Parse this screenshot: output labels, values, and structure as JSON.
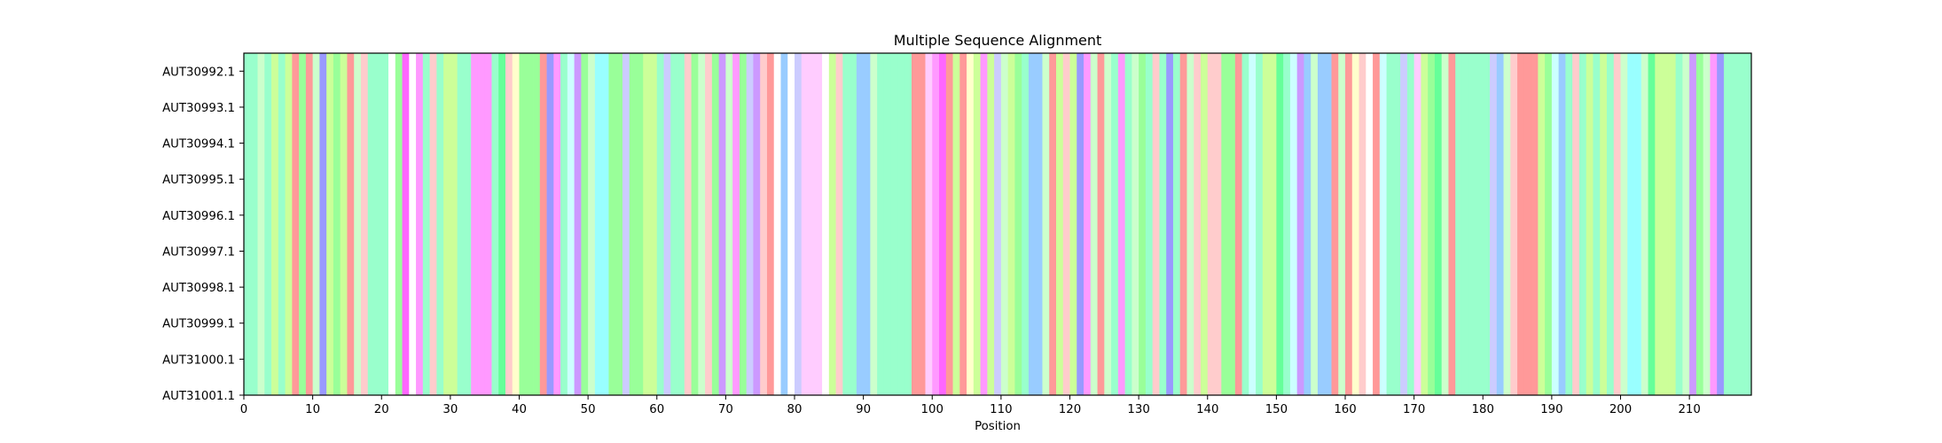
{
  "chart_data": {
    "type": "heatmap",
    "title": "Multiple Sequence Alignment",
    "xlabel": "Position",
    "ylabel": "",
    "xlim": [
      0,
      219
    ],
    "xticks": [
      0,
      10,
      20,
      30,
      40,
      50,
      60,
      70,
      80,
      90,
      100,
      110,
      120,
      130,
      140,
      150,
      160,
      170,
      180,
      190,
      200,
      210
    ],
    "sequences": [
      "AUT30992.1",
      "AUT30993.1",
      "AUT30994.1",
      "AUT30995.1",
      "AUT30996.1",
      "AUT30997.1",
      "AUT30998.1",
      "AUT30999.1",
      "AUT31000.1",
      "AUT31001.1"
    ],
    "column_colors": [
      "#99ffcc",
      "#99ffcc",
      "#ccffcc",
      "#99ffcc",
      "#ccff99",
      "#99ffcc",
      "#ccff99",
      "#ff9999",
      "#99ff99",
      "#ff9999",
      "#ccffcc",
      "#9999ff",
      "#ccff99",
      "#99ff99",
      "#ccff99",
      "#ff9999",
      "#ccffcc",
      "#ffcccc",
      "#99ffcc",
      "#99ffcc",
      "#99ffcc",
      "#ffffff",
      "#99ff99",
      "#ff66ff",
      "#ffffff",
      "#ff99ff",
      "#99ffcc",
      "#ffcccc",
      "#99ffcc",
      "#ccff99",
      "#ccff99",
      "#99ffcc",
      "#99ffcc",
      "#ff99ff",
      "#ff99ff",
      "#ff99ff",
      "#99ffcc",
      "#66ff99",
      "#ffcccc",
      "#ffffcc",
      "#99ff99",
      "#99ff99",
      "#99ff99",
      "#ff9999",
      "#9999ff",
      "#ff99ff",
      "#99ffcc",
      "#ccffff",
      "#cc99ff",
      "#99ff99",
      "#ccffcc",
      "#99ffff",
      "#99ffff",
      "#99ff99",
      "#99ff99",
      "#ccccff",
      "#99ff99",
      "#99ff99",
      "#ccff99",
      "#ccff99",
      "#99ffcc",
      "#ccccff",
      "#99ffcc",
      "#99ffcc",
      "#ffcccc",
      "#99ff99",
      "#ccffcc",
      "#ffcccc",
      "#99ff99",
      "#cc99ff",
      "#ccffcc",
      "#ff99ff",
      "#99ff99",
      "#ccccff",
      "#cc99ff",
      "#ffcccc",
      "#ff9999",
      "#ffffff",
      "#99ccff",
      "#ffffff",
      "#ccccff",
      "#ffccff",
      "#ffccff",
      "#ffccff",
      "#ffffff",
      "#ccff99",
      "#ffcccc",
      "#99ffcc",
      "#99ffcc",
      "#99ccff",
      "#99ccff",
      "#ccffcc",
      "#99ffcc",
      "#99ffcc",
      "#99ffcc",
      "#99ffcc",
      "#99ffcc",
      "#ff9999",
      "#ff9999",
      "#ffccff",
      "#ff99ff",
      "#ff66ff",
      "#ff9999",
      "#ccff99",
      "#ff9999",
      "#ffffcc",
      "#ccff99",
      "#ff99ff",
      "#ccff99",
      "#ccccff",
      "#ccffcc",
      "#ccff99",
      "#99ff99",
      "#99ffcc",
      "#99ccff",
      "#99ccff",
      "#ccffcc",
      "#ff9999",
      "#ccff99",
      "#ffcccc",
      "#ccff99",
      "#9999ff",
      "#ff99ff",
      "#ccffcc",
      "#ff9999",
      "#ccffcc",
      "#99ffcc",
      "#ff99ff",
      "#99ffcc",
      "#ccffcc",
      "#99ff99",
      "#99ffcc",
      "#ffcccc",
      "#99ffcc",
      "#9999ff",
      "#99ffcc",
      "#ff9999",
      "#ccffcc",
      "#ffcccc",
      "#ccff99",
      "#ffcccc",
      "#ffcccc",
      "#99ff99",
      "#99ff99",
      "#ff9999",
      "#99ffcc",
      "#ccffff",
      "#99ffcc",
      "#ccff99",
      "#ccff99",
      "#66ff99",
      "#99ffcc",
      "#ccffff",
      "#cc99ff",
      "#99ccff",
      "#ccffcc",
      "#99ccff",
      "#99ccff",
      "#ff9999",
      "#ccffcc",
      "#ff9999",
      "#ffffcc",
      "#ffcccc",
      "#ffffff",
      "#ff9999",
      "#ccffff",
      "#99ffcc",
      "#99ffcc",
      "#ccccff",
      "#99ffcc",
      "#ffccff",
      "#ccff99",
      "#99ff99",
      "#66ff99",
      "#ccffcc",
      "#ff9999",
      "#99ffcc",
      "#99ffcc",
      "#99ffcc",
      "#99ffcc",
      "#99ffcc",
      "#ccccff",
      "#99ccff",
      "#ccffcc",
      "#ffcccc",
      "#ff9999",
      "#ff9999",
      "#ff9999",
      "#ccff99",
      "#99ff99",
      "#ccffff",
      "#99ccff",
      "#99ffcc",
      "#ffcccc",
      "#99ffcc",
      "#ccff99",
      "#99ffcc",
      "#ccff99",
      "#99ffcc",
      "#ffcccc",
      "#ccffcc",
      "#99ffff",
      "#99ffff",
      "#ccffcc",
      "#66ff99",
      "#ccff99",
      "#ccff99",
      "#ccff99",
      "#99ffcc",
      "#ccffcc",
      "#cc99ff",
      "#99ff99",
      "#ccffcc",
      "#ff99ff",
      "#9999ff",
      "#99ffcc",
      "#99ffcc",
      "#99ffcc",
      "#99ffcc"
    ]
  }
}
